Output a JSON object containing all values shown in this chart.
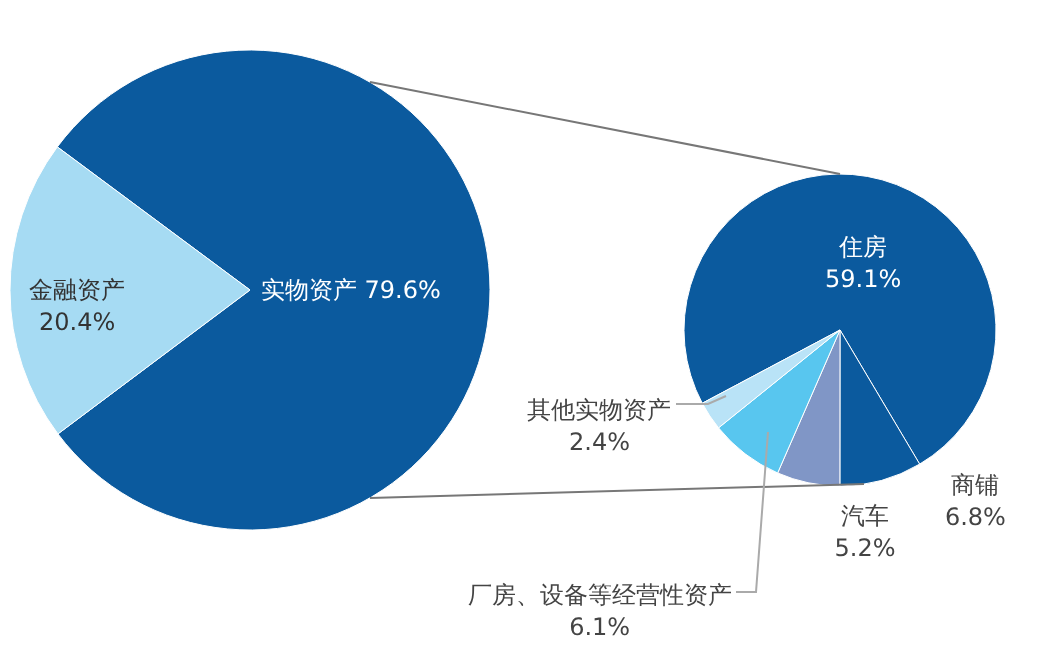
{
  "chart_data": [
    {
      "type": "pie",
      "categories": [
        "实物资产",
        "金融资产"
      ],
      "values": [
        79.6,
        20.4
      ],
      "colors": [
        "#0b5a9e",
        "#a6dbf3"
      ],
      "value_labels": [
        "79.6%",
        "20.4%"
      ]
    },
    {
      "type": "pie",
      "categories": [
        "住房",
        "商铺",
        "汽车",
        "厂房、设备等经营性资产",
        "其他实物资产"
      ],
      "values": [
        59.1,
        6.8,
        5.2,
        6.1,
        2.4
      ],
      "colors": [
        "#0b5a9e",
        "#0b5a9e",
        "#8096c6",
        "#58c6ef",
        "#b9e3f7"
      ],
      "value_labels": [
        "59.1%",
        "6.8%",
        "5.2%",
        "6.1%",
        "2.4%"
      ]
    }
  ]
}
